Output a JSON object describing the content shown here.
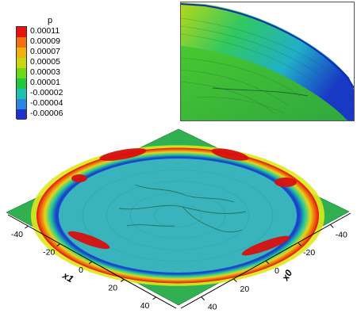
{
  "legend": {
    "title": "p",
    "levels": [
      "0.00011",
      "0.00009",
      "0.00007",
      "0.00005",
      "0.00003",
      "0.00001",
      "-0.00002",
      "-0.00004",
      "-0.00006"
    ],
    "colors": [
      "#e8120c",
      "#f07012",
      "#f0b010",
      "#c8d616",
      "#6cd818",
      "#20c840",
      "#20c0b0",
      "#2a86e0",
      "#2030c8"
    ]
  },
  "axes": {
    "x1": {
      "label": "x1",
      "ticks": [
        "-40",
        "-20",
        "0",
        "20",
        "40"
      ]
    },
    "x0": {
      "label": "x0",
      "ticks": [
        "40",
        "20",
        "0",
        "-20",
        "-40"
      ]
    }
  }
}
